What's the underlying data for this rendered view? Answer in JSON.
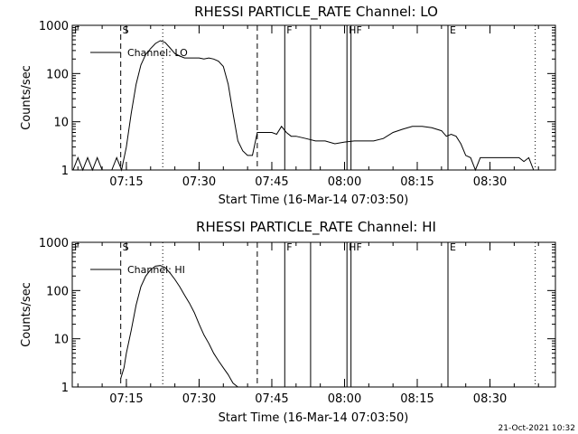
{
  "chart_data": [
    {
      "type": "line",
      "title": "RHESSI PARTICLE_RATE Channel: LO",
      "xlabel": "Start Time (16-Mar-14 07:03:50)",
      "ylabel": "Counts/sec",
      "yscale": "log",
      "ylim": [
        1,
        1000
      ],
      "xlim": [
        "07:03:50",
        "08:43:30"
      ],
      "ytick_labels": [
        "1",
        "10",
        "100",
        "1000"
      ],
      "xtick_labels": [
        "07:15",
        "07:30",
        "07:45",
        "08:00",
        "08:15",
        "08:30"
      ],
      "legend": "Channel: LO",
      "legend_position": "top-left",
      "series": [
        {
          "name": "Channel: LO",
          "x": [
            "07:04:00",
            "07:05:00",
            "07:06:00",
            "07:07:00",
            "07:08:00",
            "07:09:00",
            "07:10:00",
            "07:11:00",
            "07:12:00",
            "07:13:00",
            "07:14:00",
            "07:15:00",
            "07:16:00",
            "07:17:00",
            "07:18:00",
            "07:19:00",
            "07:20:00",
            "07:21:00",
            "07:22:00",
            "07:23:00",
            "07:24:00",
            "07:25:00",
            "07:26:00",
            "07:27:00",
            "07:28:00",
            "07:29:00",
            "07:30:00",
            "07:31:00",
            "07:32:00",
            "07:33:00",
            "07:34:00",
            "07:35:00",
            "07:36:00",
            "07:37:00",
            "07:38:00",
            "07:39:00",
            "07:40:00",
            "07:41:00",
            "07:42:00",
            "07:43:00",
            "07:44:00",
            "07:45:00",
            "07:46:00",
            "07:47:00",
            "07:48:00",
            "07:49:00",
            "07:50:00",
            "07:52:00",
            "07:54:00",
            "07:56:00",
            "07:58:00",
            "08:00:00",
            "08:02:00",
            "08:04:00",
            "08:06:00",
            "08:08:00",
            "08:10:00",
            "08:12:00",
            "08:14:00",
            "08:16:00",
            "08:18:00",
            "08:20:00",
            "08:21:00",
            "08:22:00",
            "08:23:00",
            "08:24:00",
            "08:25:00",
            "08:26:00",
            "08:27:00",
            "08:28:00",
            "08:30:00",
            "08:32:00",
            "08:34:00",
            "08:36:00",
            "08:37:00",
            "08:38:00",
            "08:39:00"
          ],
          "y": [
            1,
            1.8,
            1,
            1.8,
            1,
            1.8,
            1,
            1,
            1,
            1.8,
            1,
            3,
            15,
            60,
            150,
            250,
            330,
            420,
            480,
            440,
            340,
            260,
            230,
            210,
            210,
            210,
            210,
            200,
            210,
            200,
            180,
            140,
            60,
            15,
            4,
            2.5,
            2,
            2,
            6,
            6,
            6,
            6,
            5.5,
            8,
            6,
            5,
            5,
            4.5,
            4,
            4,
            3.5,
            3.8,
            4,
            4,
            4,
            4.5,
            6,
            7,
            8,
            8,
            7.5,
            6.5,
            5,
            5.5,
            5,
            3.5,
            2,
            1.8,
            1,
            1.8,
            1.8,
            1.8,
            1.8,
            1.8,
            1.5,
            1.8,
            1
          ]
        }
      ],
      "markers": [
        {
          "label": "F",
          "time": "07:03:50",
          "style": "solid"
        },
        {
          "label": "S",
          "time": "07:13:50",
          "style": "dashed"
        },
        {
          "label": "",
          "time": "07:22:30",
          "style": "dotted"
        },
        {
          "label": "",
          "time": "07:42:00",
          "style": "dashed"
        },
        {
          "label": "F",
          "time": "07:47:40",
          "style": "solid"
        },
        {
          "label": "",
          "time": "07:53:00",
          "style": "solid"
        },
        {
          "label": "HF",
          "time": "08:00:30",
          "style": "solid"
        },
        {
          "label": "",
          "time": "08:01:20",
          "style": "solid"
        },
        {
          "label": "E",
          "time": "08:21:20",
          "style": "solid"
        },
        {
          "label": "",
          "time": "08:39:20",
          "style": "dotted"
        }
      ]
    },
    {
      "type": "line",
      "title": "RHESSI PARTICLE_RATE Channel: HI",
      "xlabel": "Start Time (16-Mar-14 07:03:50)",
      "ylabel": "Counts/sec",
      "yscale": "log",
      "ylim": [
        1,
        1000
      ],
      "xlim": [
        "07:03:50",
        "08:43:30"
      ],
      "ytick_labels": [
        "1",
        "10",
        "100",
        "1000"
      ],
      "xtick_labels": [
        "07:15",
        "07:30",
        "07:45",
        "08:00",
        "08:15",
        "08:30"
      ],
      "legend": "Channel: HI",
      "legend_position": "top-left",
      "series": [
        {
          "name": "Channel: HI",
          "x": [
            "07:13:50",
            "07:14:30",
            "07:15:00",
            "07:16:00",
            "07:17:00",
            "07:18:00",
            "07:19:00",
            "07:20:00",
            "07:21:00",
            "07:22:00",
            "07:23:00",
            "07:24:00",
            "07:25:00",
            "07:26:00",
            "07:27:00",
            "07:28:00",
            "07:29:00",
            "07:30:00",
            "07:31:00",
            "07:32:00",
            "07:33:00",
            "07:34:00",
            "07:35:00",
            "07:36:00",
            "07:37:00",
            "07:38:00"
          ],
          "y": [
            1.5,
            2.5,
            5,
            15,
            50,
            120,
            200,
            270,
            320,
            330,
            300,
            230,
            170,
            120,
            80,
            55,
            35,
            20,
            12,
            8,
            5,
            3.5,
            2.5,
            1.8,
            1.2,
            1
          ]
        }
      ],
      "markers": [
        {
          "label": "F",
          "time": "07:03:50",
          "style": "solid"
        },
        {
          "label": "S",
          "time": "07:13:50",
          "style": "dashed"
        },
        {
          "label": "",
          "time": "07:22:30",
          "style": "dotted"
        },
        {
          "label": "",
          "time": "07:42:00",
          "style": "dashed"
        },
        {
          "label": "F",
          "time": "07:47:40",
          "style": "solid"
        },
        {
          "label": "",
          "time": "07:53:00",
          "style": "solid"
        },
        {
          "label": "HF",
          "time": "08:00:30",
          "style": "solid"
        },
        {
          "label": "",
          "time": "08:01:20",
          "style": "solid"
        },
        {
          "label": "E",
          "time": "08:21:20",
          "style": "solid"
        },
        {
          "label": "",
          "time": "08:39:20",
          "style": "dotted"
        }
      ]
    }
  ],
  "footer": {
    "timestamp": "21-Oct-2021 10:32"
  },
  "colors": {
    "background": "#ffffff",
    "foreground": "#000000"
  }
}
